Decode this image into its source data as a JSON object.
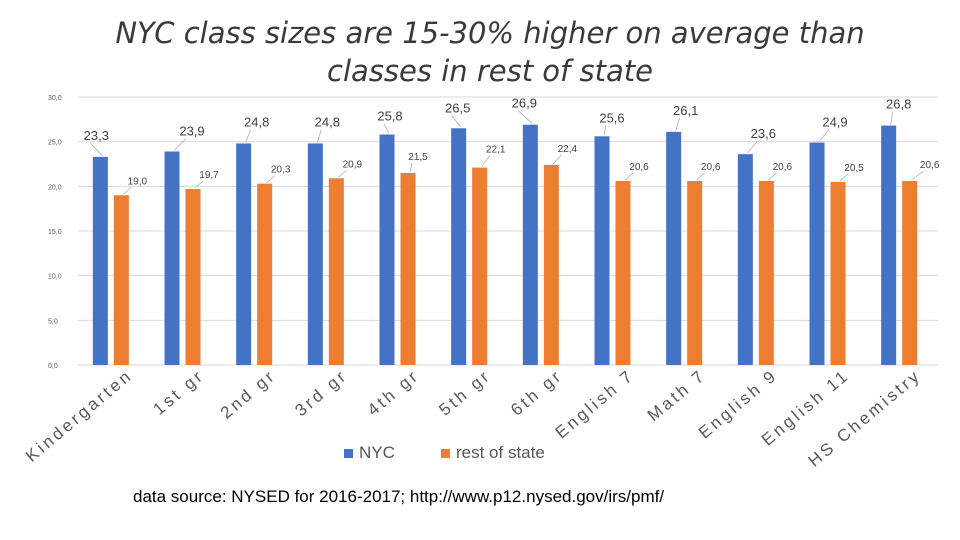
{
  "title": "NYC class sizes are 15-30% higher on average than classes in rest of state",
  "source": "data source: NYSED for 2016-2017; http://www.p12.nysed.gov/irs/pmf/",
  "colors": {
    "nyc": "#4472C4",
    "ros": "#ED7D31",
    "grid": "#d9d9d9",
    "axis_text": "#595959"
  },
  "chart_data": {
    "type": "bar",
    "title": "NYC class sizes are 15-30% higher on average than classes in rest of state",
    "xlabel": "",
    "ylabel": "",
    "ylim": [
      0,
      30
    ],
    "yticks": [
      "0,0",
      "5,0",
      "10,0",
      "15,0",
      "20,0",
      "25,0",
      "30,0"
    ],
    "grid": true,
    "legend_position": "bottom",
    "categories": [
      "Kindergarten",
      "1st gr",
      "2nd gr",
      "3rd gr",
      "4th gr",
      "5th gr",
      "6th gr",
      "English 7",
      "Math 7",
      "English 9",
      "English 11",
      "HS Chemistry"
    ],
    "series": [
      {
        "name": "NYC",
        "color": "#4472C4",
        "values": [
          23.3,
          23.9,
          24.8,
          24.8,
          25.8,
          26.5,
          26.9,
          25.6,
          26.1,
          23.6,
          24.9,
          26.8
        ],
        "labels": [
          "23,3",
          "23,9",
          "24,8",
          "24,8",
          "25,8",
          "26,5",
          "26,9",
          "25,6",
          "26,1",
          "23,6",
          "24,9",
          "26,8"
        ]
      },
      {
        "name": "rest of state",
        "color": "#ED7D31",
        "values": [
          19.0,
          19.7,
          20.3,
          20.9,
          21.5,
          22.1,
          22.4,
          20.6,
          20.6,
          20.6,
          20.5,
          20.6
        ],
        "labels": [
          "19,0",
          "19,7",
          "20,3",
          "20,9",
          "21,5",
          "22,1",
          "22,4",
          "20,6",
          "20,6",
          "20,6",
          "20,5",
          "20,6"
        ]
      }
    ]
  }
}
